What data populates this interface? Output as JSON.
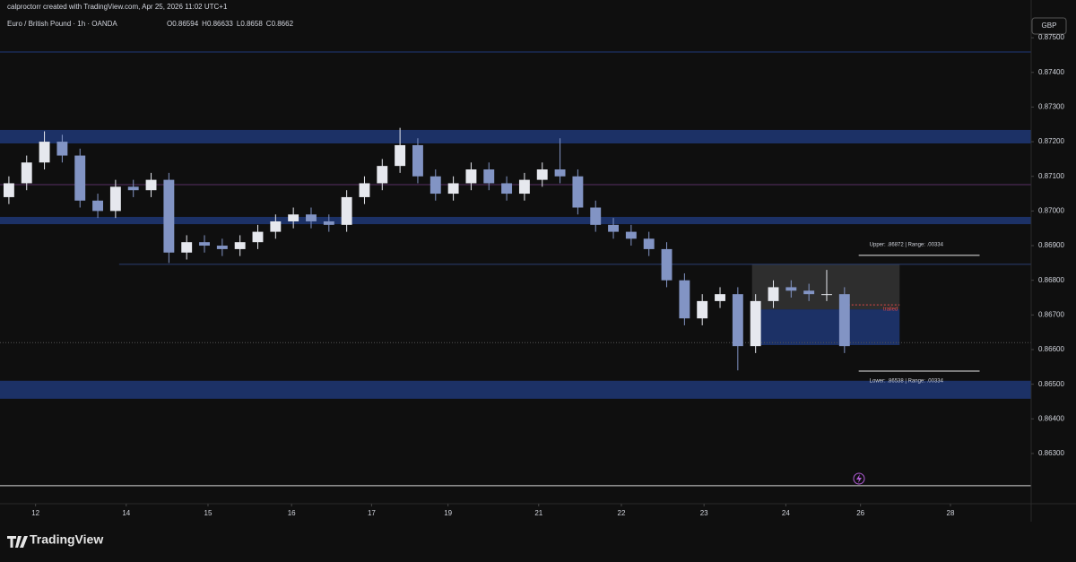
{
  "header": {
    "author_line": "calproctorr created with TradingView.com, Apr 25, 2026 11:02 UTC+1",
    "symbol": "Euro / British Pound · 1h · OANDA",
    "ohlc": [
      {
        "label": "O",
        "value": 0.86594
      },
      {
        "label": "H",
        "value": 0.86633
      },
      {
        "label": "L",
        "value": 0.8658
      },
      {
        "label": "C",
        "value": 0.8662
      }
    ],
    "currency": "GBP"
  },
  "footer": {
    "brand": "TradingView"
  },
  "chart_data": {
    "type": "candlestick",
    "up_color": "#e6e8ee",
    "down_color": "#8294c4",
    "open": [
      0.8704,
      0.8708,
      0.8714,
      0.872,
      0.8716,
      0.8703,
      0.87,
      0.8707,
      0.8706,
      0.8709,
      0.8688,
      0.8691,
      0.869,
      0.8689,
      0.8691,
      0.8694,
      0.8697,
      0.8699,
      0.8697,
      0.8696,
      0.8704,
      0.8708,
      0.8713,
      0.8719,
      0.871,
      0.8705,
      0.8708,
      0.8712,
      0.8708,
      0.8705,
      0.8709,
      0.8712,
      0.871,
      0.8701,
      0.8696,
      0.8694,
      0.8692,
      0.8689,
      0.868,
      0.8669,
      0.8674,
      0.8676,
      0.8661,
      0.8674,
      0.8678,
      0.8677,
      0.8676,
      0.8676
    ],
    "high": [
      0.871,
      0.8716,
      0.8723,
      0.8722,
      0.8718,
      0.8705,
      0.8709,
      0.8709,
      0.8711,
      0.8711,
      0.8693,
      0.8693,
      0.8692,
      0.8693,
      0.8696,
      0.8699,
      0.8701,
      0.8701,
      0.8699,
      0.8706,
      0.871,
      0.8715,
      0.8724,
      0.8721,
      0.8712,
      0.871,
      0.8714,
      0.8714,
      0.871,
      0.8711,
      0.8714,
      0.8721,
      0.8712,
      0.8703,
      0.8698,
      0.8696,
      0.8694,
      0.8691,
      0.8682,
      0.8676,
      0.8678,
      0.8678,
      0.8676,
      0.868,
      0.868,
      0.8679,
      0.8683,
      0.8678
    ],
    "low": [
      0.8702,
      0.8706,
      0.8712,
      0.8714,
      0.8701,
      0.8698,
      0.8698,
      0.8704,
      0.8704,
      0.8685,
      0.8686,
      0.8688,
      0.8687,
      0.8687,
      0.8689,
      0.8692,
      0.8695,
      0.8695,
      0.8694,
      0.8694,
      0.8702,
      0.8706,
      0.8711,
      0.8708,
      0.8703,
      0.8703,
      0.8706,
      0.8706,
      0.8703,
      0.8703,
      0.8707,
      0.8708,
      0.8699,
      0.8694,
      0.8692,
      0.869,
      0.8687,
      0.8678,
      0.8667,
      0.8667,
      0.8672,
      0.8654,
      0.8659,
      0.8672,
      0.8675,
      0.8674,
      0.8674,
      0.8659
    ],
    "close": [
      0.8708,
      0.8714,
      0.872,
      0.8716,
      0.8703,
      0.87,
      0.8707,
      0.8706,
      0.8709,
      0.8688,
      0.8691,
      0.869,
      0.8689,
      0.8691,
      0.8694,
      0.8697,
      0.8699,
      0.8697,
      0.8696,
      0.8704,
      0.8708,
      0.8713,
      0.8719,
      0.871,
      0.8705,
      0.8708,
      0.8712,
      0.8708,
      0.8705,
      0.8709,
      0.8712,
      0.871,
      0.8701,
      0.8696,
      0.8694,
      0.8692,
      0.8689,
      0.868,
      0.8669,
      0.8674,
      0.8676,
      0.8661,
      0.8674,
      0.8678,
      0.8677,
      0.8676,
      0.8676,
      0.8661
    ],
    "xlim": [
      -0.5,
      57.5
    ],
    "xticks": [
      {
        "value": 1.5,
        "label": "12"
      },
      {
        "value": 6.6,
        "label": "14"
      },
      {
        "value": 11.2,
        "label": "15"
      },
      {
        "value": 15.9,
        "label": "16"
      },
      {
        "value": 20.4,
        "label": "17"
      },
      {
        "value": 24.7,
        "label": "19"
      },
      {
        "value": 29.8,
        "label": "21"
      },
      {
        "value": 34.45,
        "label": "22"
      },
      {
        "value": 39.1,
        "label": "23"
      },
      {
        "value": 43.7,
        "label": "24"
      },
      {
        "value": 47.9,
        "label": "26"
      },
      {
        "value": 52.96,
        "label": "28"
      }
    ],
    "ylim": [
      0.86155,
      0.87609
    ],
    "yticks": [
      {
        "value": 0.875,
        "label": "0.87500"
      },
      {
        "value": 0.874,
        "label": "0.87400"
      },
      {
        "value": 0.873,
        "label": "0.87300"
      },
      {
        "value": 0.872,
        "label": "0.87200"
      },
      {
        "value": 0.871,
        "label": "0.87100"
      },
      {
        "value": 0.87,
        "label": "0.87000"
      },
      {
        "value": 0.869,
        "label": "0.86900"
      },
      {
        "value": 0.868,
        "label": "0.86800"
      },
      {
        "value": 0.867,
        "label": "0.86700"
      },
      {
        "value": 0.866,
        "label": "0.86600"
      },
      {
        "value": 0.865,
        "label": "0.86500"
      },
      {
        "value": 0.864,
        "label": "0.86400"
      },
      {
        "value": 0.863,
        "label": "0.86300"
      }
    ],
    "zones": [
      {
        "from": 0.87195,
        "to": 0.87234,
        "color": "#1c3166"
      },
      {
        "from": 0.86962,
        "to": 0.86983,
        "color": "#1c3166"
      },
      {
        "from": 0.86458,
        "to": 0.8651,
        "color": "#1c3166"
      }
    ],
    "levels": [
      {
        "value": 0.87459,
        "color": "#1f3a78",
        "x": [
          -0.5,
          57.5
        ]
      },
      {
        "value": 0.87076,
        "color": "#5a2f66",
        "x": [
          -0.5,
          57.5
        ]
      },
      {
        "value": 0.86846,
        "color": "#2b3f72",
        "x": [
          6.2,
          57.5
        ]
      },
      {
        "value": 0.86207,
        "color": "#d8d8d8",
        "x": [
          -0.5,
          57.5
        ]
      },
      {
        "value": 0.8662,
        "color": "#555555",
        "x": [
          -0.5,
          57.5
        ],
        "dashed": true
      }
    ],
    "range_boxes": [
      {
        "from": 0.86716,
        "to": 0.86846,
        "x": [
          41.8,
          50.1
        ],
        "color": "#2e2e2e"
      },
      {
        "from": 0.86613,
        "to": 0.86716,
        "x": [
          41.8,
          50.1
        ],
        "color": "#1c3166"
      }
    ],
    "range_tool": {
      "upper": {
        "value": 0.86872,
        "label": "Upper: .86872  |  Range: .00334"
      },
      "lower": {
        "value": 0.86538,
        "label": "Lower: .86538  |  Range: .00334"
      },
      "x": [
        47.8,
        54.6
      ]
    },
    "trail": {
      "value": 0.86729,
      "label": "trailed",
      "color": "#e04848",
      "x": [
        47.0,
        50.1
      ]
    }
  }
}
